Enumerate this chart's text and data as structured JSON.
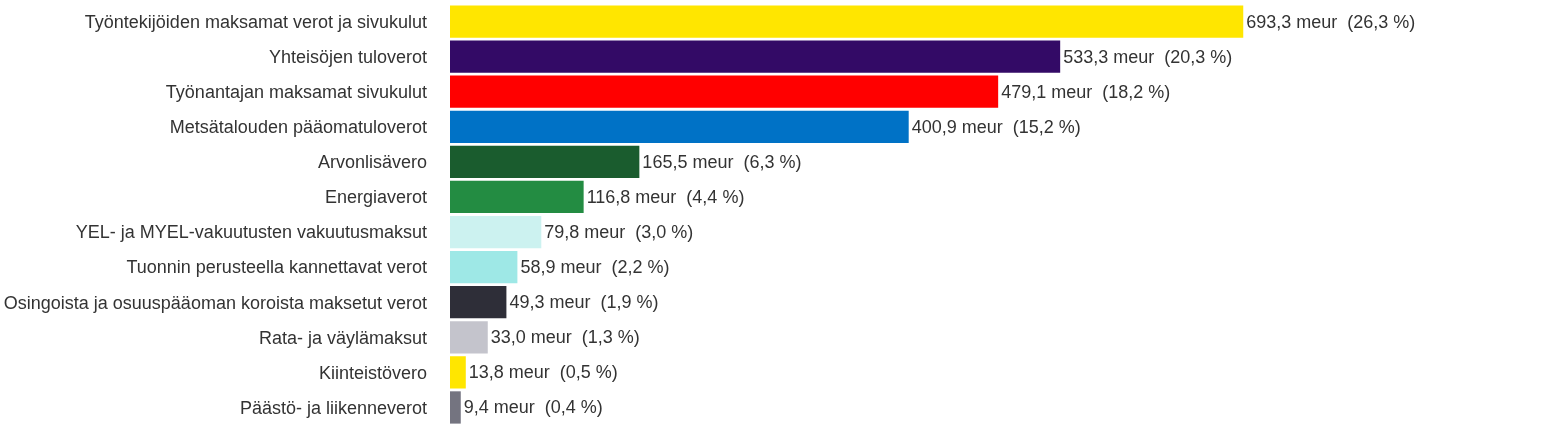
{
  "chart_data": {
    "type": "bar",
    "orientation": "horizontal",
    "categories": [
      "Työntekijöiden maksamat verot ja sivukulut",
      "Yhteisöjen tuloverot",
      "Työnantajan maksamat sivukulut",
      "Metsätalouden pääomatuloverot",
      "Arvonlisävero",
      "Energiaverot",
      "YEL- ja MYEL-vakuutusten vakuutusmaksut",
      "Tuonnin perusteella kannettavat verot",
      "Osingoista ja osuuspääoman koroista maksetut verot",
      "Rata- ja väylämaksut",
      "Kiinteistövero",
      "Päästö- ja liikenneverot"
    ],
    "values": [
      693.3,
      533.3,
      479.1,
      400.9,
      165.5,
      116.8,
      79.8,
      58.9,
      49.3,
      33.0,
      13.8,
      9.4
    ],
    "colors": [
      "#ffe600",
      "#330a66",
      "#ff0000",
      "#0072c6",
      "#1a5c2e",
      "#238c42",
      "#ccf2f0",
      "#9ee8e6",
      "#2e2e38",
      "#c4c4cc",
      "#ffe600",
      "#747480"
    ],
    "value_labels": [
      "693,3 meur  (26,3 %)",
      "533,3 meur  (20,3 %)",
      "479,1 meur  (18,2 %)",
      "400,9 meur  (15,2 %)",
      "165,5 meur  (6,3 %)",
      "116,8 meur  (4,4 %)",
      "79,8 meur  (3,0 %)",
      "58,9 meur  (2,2 %)",
      "49,3 meur  (1,9 %)",
      "33,0 meur  (1,3 %)",
      "13,8 meur  (0,5 %)",
      "9,4 meur  (0,4 %)"
    ],
    "legend": false
  }
}
